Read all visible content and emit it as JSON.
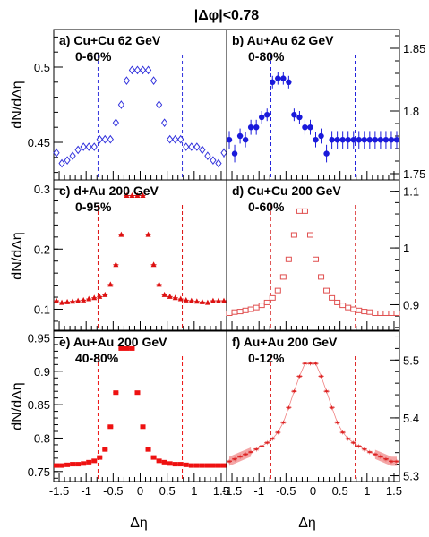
{
  "figure": {
    "title": "|Δφ|<0.78",
    "xlabel": "Δη",
    "ylabel": "dN/dΔη"
  },
  "chart_data": [
    {
      "type": "scatter",
      "panel": "a) Cu+Cu 62 GeV",
      "centrality": "0-60%",
      "marker": "open-diamond",
      "color": "#3333dd",
      "ylim": [
        0.425,
        0.525
      ],
      "yticks": [
        "0.45",
        "0.5"
      ],
      "ytick_values": [
        0.45,
        0.5
      ],
      "y_axis_side": "left",
      "cut_lines": [
        -0.78,
        0.78
      ],
      "x": [
        -1.55,
        -1.45,
        -1.35,
        -1.25,
        -1.15,
        -1.05,
        -0.95,
        -0.85,
        -0.75,
        -0.65,
        -0.55,
        -0.45,
        -0.35,
        -0.25,
        -0.15,
        -0.05,
        0.05,
        0.15,
        0.25,
        0.35,
        0.45,
        0.55,
        0.65,
        0.75,
        0.85,
        0.95,
        1.05,
        1.15,
        1.25,
        1.35,
        1.45,
        1.55
      ],
      "y": [
        0.443,
        0.436,
        0.438,
        0.441,
        0.445,
        0.447,
        0.447,
        0.447,
        0.452,
        0.452,
        0.452,
        0.463,
        0.475,
        0.491,
        0.498,
        0.498,
        0.498,
        0.498,
        0.491,
        0.475,
        0.463,
        0.452,
        0.452,
        0.452,
        0.447,
        0.447,
        0.447,
        0.445,
        0.441,
        0.438,
        0.436,
        0.443
      ],
      "err": [
        0.003,
        0.002,
        0.002,
        0.002,
        0.002,
        0.002,
        0.002,
        0.002,
        0.002,
        0.002,
        0.002,
        0.002,
        0.002,
        0.002,
        0.002,
        0.002,
        0.002,
        0.002,
        0.002,
        0.002,
        0.002,
        0.002,
        0.002,
        0.002,
        0.002,
        0.002,
        0.002,
        0.002,
        0.002,
        0.002,
        0.002,
        0.003
      ]
    },
    {
      "type": "scatter",
      "panel": "b) Au+Au 62 GeV",
      "centrality": "0-80%",
      "marker": "filled-circle",
      "color": "#1a1adb",
      "ylim": [
        1.745,
        1.865
      ],
      "yticks": [
        "1.75",
        "1.8",
        "1.85"
      ],
      "ytick_values": [
        1.75,
        1.8,
        1.85
      ],
      "y_axis_side": "right",
      "cut_lines": [
        -0.78,
        0.78
      ],
      "x": [
        -1.55,
        -1.45,
        -1.35,
        -1.25,
        -1.15,
        -1.05,
        -0.95,
        -0.85,
        -0.75,
        -0.65,
        -0.55,
        -0.45,
        -0.35,
        -0.25,
        -0.15,
        -0.05,
        0.05,
        0.15,
        0.25,
        0.35,
        0.45,
        0.55,
        0.65,
        0.75,
        0.85,
        0.95,
        1.05,
        1.15,
        1.25,
        1.35,
        1.45,
        1.55
      ],
      "y": [
        1.777,
        1.766,
        1.78,
        1.777,
        1.787,
        1.787,
        1.795,
        1.797,
        1.823,
        1.826,
        1.826,
        1.823,
        1.797,
        1.795,
        1.787,
        1.787,
        1.777,
        1.78,
        1.766,
        1.777,
        1.777,
        1.777,
        1.777,
        1.777,
        1.777,
        1.777,
        1.777,
        1.777,
        1.777,
        1.777,
        1.777,
        1.777
      ],
      "err": [
        0.007,
        0.007,
        0.006,
        0.006,
        0.006,
        0.006,
        0.005,
        0.005,
        0.005,
        0.005,
        0.005,
        0.005,
        0.005,
        0.005,
        0.006,
        0.006,
        0.006,
        0.006,
        0.007,
        0.007,
        0.007,
        0.007,
        0.007,
        0.007,
        0.007,
        0.007,
        0.007,
        0.007,
        0.007,
        0.007,
        0.007,
        0.007
      ]
    },
    {
      "type": "scatter",
      "panel": "c) d+Au 200 GeV",
      "centrality": "0-95%",
      "marker": "filled-triangle",
      "color": "#dd1111",
      "ylim": [
        0.065,
        0.315
      ],
      "yticks": [
        "0.1",
        "0.2",
        "0.3"
      ],
      "ytick_values": [
        0.1,
        0.2,
        0.3
      ],
      "y_axis_side": "left",
      "cut_lines": [
        -0.78,
        0.78
      ],
      "x": [
        -1.55,
        -1.45,
        -1.35,
        -1.25,
        -1.15,
        -1.05,
        -0.95,
        -0.85,
        -0.75,
        -0.65,
        -0.55,
        -0.45,
        -0.35,
        -0.25,
        -0.15,
        -0.05,
        0.05,
        0.15,
        0.25,
        0.35,
        0.45,
        0.55,
        0.65,
        0.75,
        0.85,
        0.95,
        1.05,
        1.15,
        1.25,
        1.35,
        1.45,
        1.55
      ],
      "y": [
        0.114,
        0.111,
        0.112,
        0.113,
        0.114,
        0.115,
        0.117,
        0.119,
        0.121,
        0.124,
        0.141,
        0.174,
        0.224,
        0.289,
        0.289,
        0.289,
        0.289,
        0.224,
        0.174,
        0.141,
        0.124,
        0.121,
        0.119,
        0.117,
        0.115,
        0.114,
        0.113,
        0.112,
        0.111,
        0.114,
        0.114,
        0.114
      ],
      "err": [
        0.002,
        0.002,
        0.002,
        0.002,
        0.002,
        0.002,
        0.002,
        0.002,
        0.002,
        0.002,
        0.002,
        0.002,
        0.002,
        0.002,
        0.002,
        0.002,
        0.002,
        0.002,
        0.002,
        0.002,
        0.002,
        0.002,
        0.002,
        0.002,
        0.002,
        0.002,
        0.002,
        0.002,
        0.002,
        0.002,
        0.002,
        0.002
      ]
    },
    {
      "type": "scatter",
      "panel": "d) Cu+Cu 200 GeV",
      "centrality": "0-60%",
      "marker": "open-square",
      "color": "#e05050",
      "ylim": [
        0.855,
        1.12
      ],
      "yticks": [
        "0.9",
        "1",
        "1.1"
      ],
      "ytick_values": [
        0.9,
        1.0,
        1.1
      ],
      "y_axis_side": "right",
      "cut_lines": [
        -0.78,
        0.78
      ],
      "x": [
        -1.55,
        -1.45,
        -1.35,
        -1.25,
        -1.15,
        -1.05,
        -0.95,
        -0.85,
        -0.75,
        -0.65,
        -0.55,
        -0.45,
        -0.35,
        -0.25,
        -0.15,
        -0.05,
        0.05,
        0.15,
        0.25,
        0.35,
        0.45,
        0.55,
        0.65,
        0.75,
        0.85,
        0.95,
        1.05,
        1.15,
        1.25,
        1.35,
        1.45,
        1.55
      ],
      "y": [
        0.885,
        0.887,
        0.888,
        0.89,
        0.892,
        0.895,
        0.899,
        0.904,
        0.912,
        0.925,
        0.949,
        0.98,
        1.023,
        1.065,
        1.065,
        1.023,
        0.98,
        0.949,
        0.925,
        0.912,
        0.904,
        0.899,
        0.895,
        0.892,
        0.89,
        0.888,
        0.887,
        0.885,
        0.885,
        0.885,
        0.885,
        0.885
      ],
      "err": [
        0.001,
        0.001,
        0.001,
        0.001,
        0.001,
        0.001,
        0.001,
        0.001,
        0.001,
        0.001,
        0.001,
        0.001,
        0.001,
        0.001,
        0.001,
        0.001,
        0.001,
        0.001,
        0.001,
        0.001,
        0.001,
        0.001,
        0.001,
        0.001,
        0.001,
        0.001,
        0.001,
        0.001,
        0.001,
        0.001,
        0.001,
        0.001
      ]
    },
    {
      "type": "scatter",
      "panel": "e) Au+Au 200 GeV",
      "centrality": "40-80%",
      "marker": "filled-square",
      "color": "#ee1111",
      "ylim": [
        0.735,
        0.96
      ],
      "yticks": [
        "0.75",
        "0.8",
        "0.85",
        "0.9",
        "0.95"
      ],
      "ytick_values": [
        0.75,
        0.8,
        0.85,
        0.9,
        0.95
      ],
      "y_axis_side": "left",
      "cut_lines": [
        -0.78,
        0.78
      ],
      "x": [
        -1.55,
        -1.45,
        -1.35,
        -1.25,
        -1.15,
        -1.05,
        -0.95,
        -0.85,
        -0.75,
        -0.65,
        -0.55,
        -0.45,
        -0.35,
        -0.25,
        -0.15,
        -0.05,
        0.05,
        0.15,
        0.25,
        0.35,
        0.45,
        0.55,
        0.65,
        0.75,
        0.85,
        0.95,
        1.05,
        1.15,
        1.25,
        1.35,
        1.45,
        1.55
      ],
      "y": [
        0.759,
        0.759,
        0.76,
        0.761,
        0.761,
        0.762,
        0.764,
        0.766,
        0.771,
        0.783,
        0.817,
        0.868,
        0.934,
        0.934,
        0.934,
        0.868,
        0.817,
        0.783,
        0.771,
        0.766,
        0.764,
        0.762,
        0.761,
        0.761,
        0.76,
        0.759,
        0.759,
        0.759,
        0.759,
        0.759,
        0.759,
        0.759
      ],
      "err": [
        0.002,
        0.002,
        0.002,
        0.002,
        0.002,
        0.002,
        0.002,
        0.002,
        0.002,
        0.002,
        0.002,
        0.002,
        0.002,
        0.002,
        0.002,
        0.002,
        0.002,
        0.002,
        0.002,
        0.002,
        0.002,
        0.002,
        0.002,
        0.002,
        0.002,
        0.002,
        0.002,
        0.002,
        0.002,
        0.002,
        0.002,
        0.002
      ]
    },
    {
      "type": "scatter",
      "panel": "f) Au+Au 200 GeV",
      "centrality": "0-12%",
      "marker": "star",
      "color": "#dd2222",
      "band_color": "#f08080",
      "ylim": [
        5.29,
        5.55
      ],
      "yticks": [
        "5.3",
        "5.4",
        "5.5"
      ],
      "ytick_values": [
        5.3,
        5.4,
        5.5
      ],
      "y_axis_side": "right",
      "cut_lines": [
        -0.78,
        0.78
      ],
      "x": [
        -1.55,
        -1.45,
        -1.35,
        -1.25,
        -1.15,
        -1.05,
        -0.95,
        -0.85,
        -0.75,
        -0.65,
        -0.55,
        -0.45,
        -0.35,
        -0.25,
        -0.15,
        -0.05,
        0.05,
        0.15,
        0.25,
        0.35,
        0.45,
        0.55,
        0.65,
        0.75,
        0.85,
        0.95,
        1.05,
        1.15,
        1.25,
        1.35,
        1.45,
        1.55
      ],
      "y": [
        5.325,
        5.329,
        5.333,
        5.337,
        5.341,
        5.346,
        5.351,
        5.357,
        5.364,
        5.375,
        5.392,
        5.418,
        5.446,
        5.472,
        5.494,
        5.494,
        5.494,
        5.472,
        5.446,
        5.418,
        5.392,
        5.375,
        5.364,
        5.357,
        5.351,
        5.346,
        5.341,
        5.337,
        5.333,
        5.329,
        5.325,
        5.325
      ],
      "err": [
        0.002,
        0.002,
        0.002,
        0.002,
        0.002,
        0.002,
        0.002,
        0.002,
        0.002,
        0.002,
        0.002,
        0.002,
        0.002,
        0.002,
        0.002,
        0.002,
        0.002,
        0.002,
        0.002,
        0.002,
        0.002,
        0.002,
        0.002,
        0.002,
        0.002,
        0.002,
        0.002,
        0.002,
        0.002,
        0.002,
        0.002,
        0.002
      ],
      "sys_band_x_ranges": [
        [
          -1.6,
          -1.2
        ],
        [
          1.2,
          1.6
        ]
      ]
    }
  ],
  "x_axis": {
    "xlim": [
      -1.6,
      1.6
    ],
    "tick_values": [
      -1.5,
      -1,
      -0.5,
      0,
      0.5,
      1,
      1.5
    ],
    "tick_labels": [
      "-1.5",
      "-1",
      "-0.5",
      "0",
      "0.5",
      "1",
      "1.5"
    ]
  }
}
